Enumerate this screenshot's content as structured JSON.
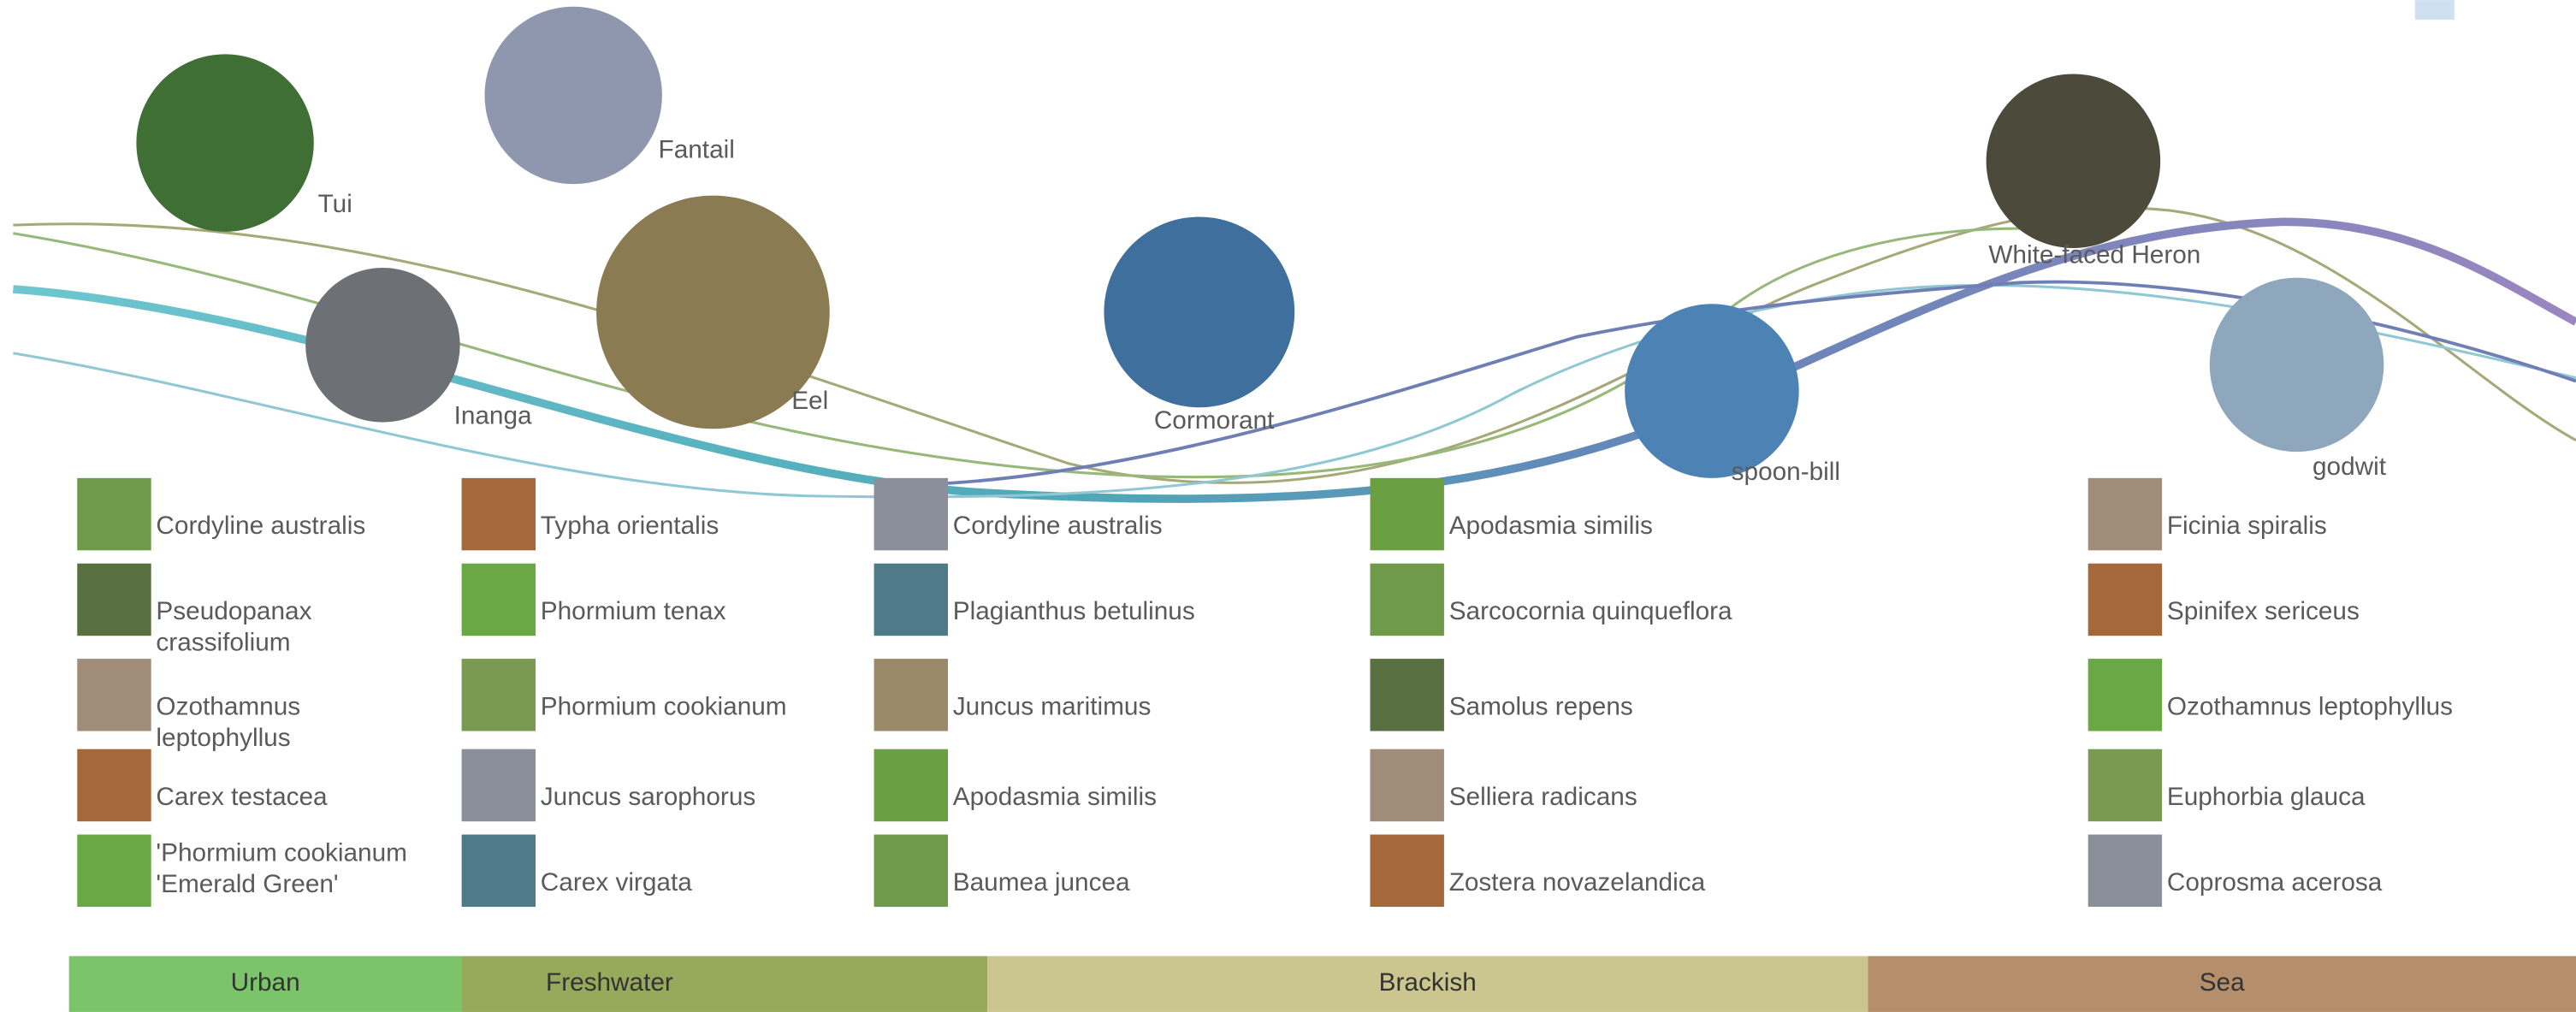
{
  "animals": [
    {
      "label": "Tui"
    },
    {
      "label": "Fantail"
    },
    {
      "label": "Inanga"
    },
    {
      "label": "Eel"
    },
    {
      "label": "Cormorant"
    },
    {
      "label": "spoon-bill"
    },
    {
      "label": "White-faced Heron"
    },
    {
      "label": "godwit"
    }
  ],
  "plant_columns": [
    {
      "plants": [
        "Cordyline australis",
        "Pseudopanax crassifolium",
        "Ozothamnus leptophyllus",
        "Carex testacea",
        "'Phormium cookianum 'Emerald Green'"
      ]
    },
    {
      "plants": [
        "Typha orientalis",
        "Phormium tenax",
        "Phormium cookianum",
        "Juncus sarophorus",
        "Carex virgata"
      ]
    },
    {
      "plants": [
        "Cordyline australis",
        "Plagianthus betulinus",
        "Juncus maritimus",
        "Apodasmia similis",
        "Baumea juncea"
      ]
    },
    {
      "plants": [
        "Apodasmia similis",
        "Sarcocornia quinqueflora",
        "Samolus repens",
        "Selliera radicans",
        "Zostera novazelandica"
      ]
    },
    {
      "plants": [
        "Ficinia spiralis",
        "Spinifex sericeus",
        "Ozothamnus leptophyllus",
        "Euphorbia glauca",
        "Coprosma acerosa"
      ]
    }
  ],
  "zones": [
    {
      "label": "Urban"
    },
    {
      "label": "Freshwater"
    },
    {
      "label": "Brackish"
    },
    {
      "label": "Sea"
    }
  ]
}
